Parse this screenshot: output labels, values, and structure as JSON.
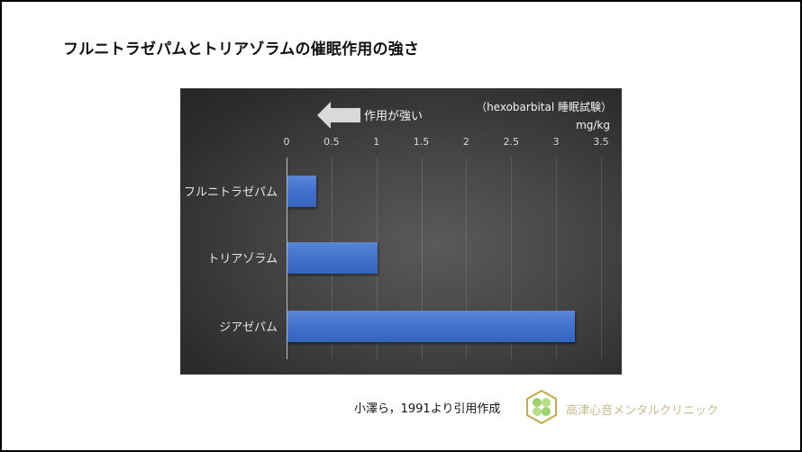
{
  "page": {
    "title": "フルニトラゼパムとトリアゾラムの催眠作用の強さ",
    "citation": "小澤ら，1991より引用作成",
    "clinic_name": "高津心音メンタルクリニック"
  },
  "chart": {
    "arrow_label": "作用が強い",
    "note": "（hexobarbital 睡眠試験）",
    "unit": "mg/kg",
    "ticks": [
      "0",
      "0.5",
      "1",
      "1.5",
      "2",
      "2.5",
      "3",
      "3.5"
    ],
    "categories": [
      "フルニトラゼパム",
      "トリアゾラム",
      "ジアゼパム"
    ]
  },
  "colors": {
    "bar": "#4473cc",
    "chart_background": "#404040",
    "clinic_text": "#c9b98a",
    "logo_green": "#8fc65a",
    "logo_gold": "#c8a84a"
  },
  "chart_data": {
    "type": "bar",
    "orientation": "horizontal",
    "title": "フルニトラゼパムとトリアゾラムの催眠作用の強さ",
    "categories": [
      "フルニトラゼパム",
      "トリアゾラム",
      "ジアゼパム"
    ],
    "values": [
      0.32,
      1.0,
      3.2
    ],
    "xlabel": "mg/kg",
    "ylabel": "",
    "xlim": [
      0,
      3.5
    ],
    "xticks": [
      0,
      0.5,
      1,
      1.5,
      2,
      2.5,
      3,
      3.5
    ],
    "x_axis_position": "top",
    "grid": true,
    "legend": "none",
    "annotations": [
      "作用が強い (arrow pointing left)",
      "（hexobarbital 睡眠試験）"
    ]
  }
}
